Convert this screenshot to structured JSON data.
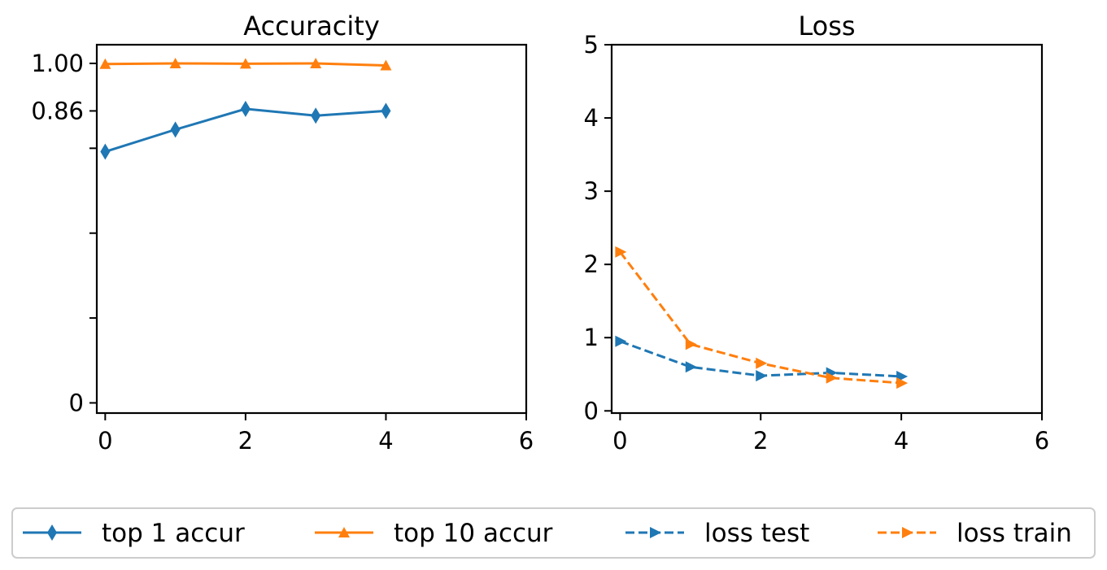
{
  "chart_data": [
    {
      "type": "line",
      "title": "Accuracity",
      "xlabel": "",
      "ylabel": "",
      "xlim": [
        -0.12,
        6
      ],
      "ylim": [
        -0.03,
        1.055
      ],
      "x_ticks": [
        0,
        2,
        4,
        6
      ],
      "y_ticks": [
        0,
        0.25,
        0.5,
        0.75,
        0.86,
        1.0
      ],
      "y_tick_labels": [
        "0",
        "",
        "",
        "",
        "0.86",
        "1.00"
      ],
      "grid": false,
      "series": [
        {
          "name": "top 1 accur",
          "color": "#1f77b4",
          "marker": "thin-diamond",
          "linestyle": "solid",
          "x": [
            0,
            1,
            2,
            3,
            4
          ],
          "values": [
            0.74,
            0.805,
            0.866,
            0.846,
            0.86
          ]
        },
        {
          "name": "top 10 accur",
          "color": "#ff7f0e",
          "marker": "triangle-up",
          "linestyle": "solid",
          "x": [
            0,
            1,
            2,
            3,
            4
          ],
          "values": [
            0.998,
            1.0,
            0.999,
            1.0,
            0.994
          ]
        }
      ]
    },
    {
      "type": "line",
      "title": "Loss",
      "xlabel": "",
      "ylabel": "",
      "xlim": [
        -0.12,
        6
      ],
      "ylim": [
        -0.03,
        5
      ],
      "x_ticks": [
        0,
        2,
        4,
        6
      ],
      "y_ticks": [
        0,
        1,
        2,
        3,
        4,
        5
      ],
      "y_tick_labels": [
        "0",
        "1",
        "2",
        "3",
        "4",
        "5"
      ],
      "grid": false,
      "series": [
        {
          "name": "loss test",
          "color": "#1f77b4",
          "marker": "triangle-right",
          "linestyle": "dashed",
          "x": [
            0,
            1,
            2,
            3,
            4
          ],
          "values": [
            0.95,
            0.6,
            0.48,
            0.52,
            0.47
          ]
        },
        {
          "name": "loss train",
          "color": "#ff7f0e",
          "marker": "triangle-right",
          "linestyle": "dashed",
          "x": [
            0,
            1,
            2,
            3,
            4
          ],
          "values": [
            2.17,
            0.91,
            0.65,
            0.45,
            0.38
          ]
        }
      ]
    }
  ],
  "legend": {
    "placement": "bottom",
    "entries": [
      "top 1 accur",
      "top 10 accur",
      "loss test",
      "loss train"
    ]
  }
}
